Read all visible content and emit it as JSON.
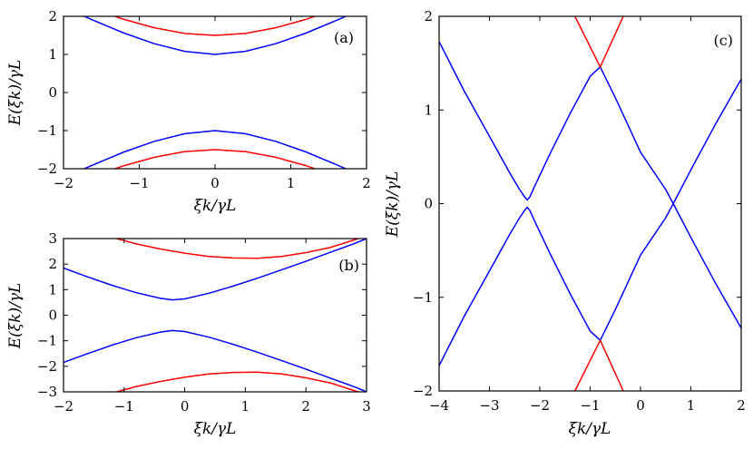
{
  "chart_data": [
    {
      "id": "a",
      "type": "line",
      "panel_label": "(a)",
      "xlabel": "ξk/γL",
      "ylabel": "E(ξk)/γL",
      "xlim": [
        -2,
        2
      ],
      "ylim": [
        -2,
        2
      ],
      "xticks": [
        "−2",
        "−1",
        "0",
        "1",
        "2"
      ],
      "yticks": [
        "−2",
        "−1",
        "0",
        "1",
        "2"
      ],
      "grid": false,
      "series": [
        {
          "color": "#ff0000",
          "x": [
            -2,
            -1.6,
            -1.2,
            -0.8,
            -0.4,
            0,
            0.4,
            0.8,
            1.2,
            1.6,
            2
          ],
          "y": [
            2.5,
            2.19,
            1.92,
            1.7,
            1.55,
            1.5,
            1.55,
            1.7,
            1.92,
            2.19,
            2.5
          ]
        },
        {
          "color": "#0000ff",
          "x": [
            -2,
            -1.6,
            -1.2,
            -0.8,
            -0.4,
            0,
            0.4,
            0.8,
            1.2,
            1.6,
            2
          ],
          "y": [
            2.24,
            1.89,
            1.56,
            1.28,
            1.08,
            1.0,
            1.08,
            1.28,
            1.56,
            1.89,
            2.24
          ]
        },
        {
          "color": "#0000ff",
          "x": [
            -2,
            -1.6,
            -1.2,
            -0.8,
            -0.4,
            0,
            0.4,
            0.8,
            1.2,
            1.6,
            2
          ],
          "y": [
            -2.24,
            -1.89,
            -1.56,
            -1.28,
            -1.08,
            -1.0,
            -1.08,
            -1.28,
            -1.56,
            -1.89,
            -2.24
          ]
        },
        {
          "color": "#ff0000",
          "x": [
            -2,
            -1.6,
            -1.2,
            -0.8,
            -0.4,
            0,
            0.4,
            0.8,
            1.2,
            1.6,
            2
          ],
          "y": [
            -2.5,
            -2.19,
            -1.92,
            -1.7,
            -1.55,
            -1.5,
            -1.55,
            -1.7,
            -1.92,
            -2.19,
            -2.5
          ]
        }
      ]
    },
    {
      "id": "b",
      "type": "line",
      "panel_label": "(b)",
      "xlabel": "ξk/γL",
      "ylabel": "E(ξk)/γL",
      "xlim": [
        -2,
        3
      ],
      "ylim": [
        -3,
        3
      ],
      "xticks": [
        "−2",
        "−1",
        "0",
        "1",
        "2",
        "3"
      ],
      "yticks": [
        "−3",
        "−2",
        "−1",
        "0",
        "1",
        "2",
        "3"
      ],
      "grid": false,
      "series": [
        {
          "color": "#ff0000",
          "x": [
            -1.2,
            -0.8,
            -0.4,
            0,
            0.4,
            0.8,
            1.2,
            1.6,
            2.0,
            2.4,
            2.8,
            3.0
          ],
          "y": [
            3.05,
            2.79,
            2.59,
            2.43,
            2.3,
            2.24,
            2.23,
            2.3,
            2.45,
            2.65,
            2.95,
            3.1
          ]
        },
        {
          "color": "#0000ff",
          "x": [
            -2,
            -1.6,
            -1.2,
            -0.8,
            -0.4,
            -0.2,
            0,
            0.4,
            0.8,
            1.2,
            1.6,
            2.0,
            2.4,
            2.8,
            3.0
          ],
          "y": [
            1.85,
            1.5,
            1.17,
            0.88,
            0.66,
            0.6,
            0.64,
            0.86,
            1.14,
            1.45,
            1.78,
            2.11,
            2.46,
            2.8,
            3.0
          ]
        },
        {
          "color": "#0000ff",
          "x": [
            -2,
            -1.6,
            -1.2,
            -0.8,
            -0.4,
            -0.2,
            0,
            0.4,
            0.8,
            1.2,
            1.6,
            2.0,
            2.4,
            2.8,
            3.0
          ],
          "y": [
            -1.85,
            -1.5,
            -1.17,
            -0.88,
            -0.66,
            -0.6,
            -0.64,
            -0.86,
            -1.14,
            -1.45,
            -1.78,
            -2.11,
            -2.46,
            -2.8,
            -3.0
          ]
        },
        {
          "color": "#ff0000",
          "x": [
            -1.2,
            -0.8,
            -0.4,
            0,
            0.4,
            0.8,
            1.2,
            1.6,
            2.0,
            2.4,
            2.8,
            3.0
          ],
          "y": [
            -3.05,
            -2.79,
            -2.59,
            -2.43,
            -2.3,
            -2.24,
            -2.23,
            -2.3,
            -2.45,
            -2.65,
            -2.95,
            -3.1
          ]
        }
      ]
    },
    {
      "id": "c",
      "type": "line",
      "panel_label": "(c)",
      "xlabel": "ξk/γL",
      "ylabel": "E(ξk)/γL",
      "xlim": [
        -4,
        2
      ],
      "ylim": [
        -2,
        2
      ],
      "xticks": [
        "−4",
        "−3",
        "−2",
        "−1",
        "0",
        "1",
        "2"
      ],
      "yticks": [
        "−2",
        "−1",
        "0",
        "1",
        "2"
      ],
      "grid": false,
      "series": [
        {
          "color": "#0000ff",
          "x": [
            -4,
            -3.5,
            -3.0,
            -2.6,
            -2.4,
            -2.3,
            -2.25,
            -2.2,
            -2.1,
            -1.8,
            -1.4,
            -1.0,
            -0.8
          ],
          "y": [
            1.73,
            1.2,
            0.72,
            0.33,
            0.15,
            0.07,
            0.04,
            0.07,
            0.19,
            0.53,
            0.96,
            1.36,
            1.46
          ]
        },
        {
          "color": "#0000ff",
          "x": [
            -0.8,
            -0.5,
            0,
            0.5,
            0.65
          ],
          "y": [
            1.46,
            1.13,
            0.55,
            0.15,
            0.0
          ]
        },
        {
          "color": "#0000ff",
          "x": [
            0.65,
            1.0,
            1.5,
            2.0
          ],
          "y": [
            0.0,
            0.36,
            0.86,
            1.33
          ]
        },
        {
          "color": "#0000ff",
          "x": [
            -4,
            -3.5,
            -3.0,
            -2.6,
            -2.4,
            -2.3,
            -2.25,
            -2.2,
            -2.1,
            -1.8,
            -1.4,
            -1.0,
            -0.8
          ],
          "y": [
            -1.73,
            -1.2,
            -0.72,
            -0.33,
            -0.15,
            -0.07,
            -0.04,
            -0.07,
            -0.19,
            -0.53,
            -0.96,
            -1.36,
            -1.46
          ]
        },
        {
          "color": "#0000ff",
          "x": [
            -0.8,
            -0.5,
            0,
            0.5,
            0.65
          ],
          "y": [
            -1.46,
            -1.13,
            -0.55,
            -0.15,
            0.0
          ]
        },
        {
          "color": "#0000ff",
          "x": [
            0.65,
            1.0,
            1.5,
            2.0
          ],
          "y": [
            0.0,
            -0.36,
            -0.86,
            -1.33
          ]
        },
        {
          "color": "#ff0000",
          "x": [
            -1.35,
            -0.8,
            -0.3
          ],
          "y": [
            2.05,
            1.46,
            2.05
          ]
        },
        {
          "color": "#ff0000",
          "x": [
            -1.35,
            -0.8,
            -0.3
          ],
          "y": [
            -2.05,
            -1.46,
            -2.05
          ]
        }
      ]
    }
  ]
}
